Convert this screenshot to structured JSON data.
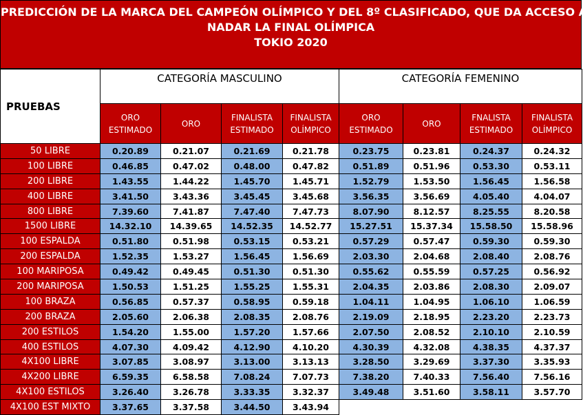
{
  "title": {
    "line1": "PREDICCIÓN DE LA MARCA DEL CAMPEÓN OLÍMPICO Y DEL 8º CLASIFICADO, QUE DA ACCESO A",
    "line2": "NADAR LA FINAL OLÍMPICA",
    "line3": "TOKIO 2020"
  },
  "header": {
    "pruebas": "PRUEBAS",
    "masculino": "CATEGORÍA MASCULINO",
    "femenino": "CATEGORÍA FEMENINO",
    "columns": [
      "ORO ESTIMADO",
      "ORO",
      "FINALISTA ESTIMADO",
      "FINALISTA OLÍMPICO",
      "ORO ESTIMADO",
      "ORO",
      "FNALISTA ESTIMADO",
      "FINALISTA OLÍMPICO"
    ]
  },
  "colors": {
    "header_red": "#c00000",
    "estimate_blue": "#8db4e2"
  },
  "rows": [
    {
      "event": "50 LIBRE",
      "m": [
        "0.20.89",
        "0.21.07",
        "0.21.69",
        "0.21.78"
      ],
      "f": [
        "0.23.75",
        "0.23.81",
        "0.24.37",
        "0.24.32"
      ]
    },
    {
      "event": "100 LIBRE",
      "m": [
        "0.46.85",
        "0.47.02",
        "0.48.00",
        "0.47.82"
      ],
      "f": [
        "0.51.89",
        "0.51.96",
        "0.53.30",
        "0.53.11"
      ]
    },
    {
      "event": "200 LIBRE",
      "m": [
        "1.43.55",
        "1.44.22",
        "1.45.70",
        "1.45.71"
      ],
      "f": [
        "1.52.79",
        "1.53.50",
        "1.56.45",
        "1.56.58"
      ]
    },
    {
      "event": "400 LIBRE",
      "m": [
        "3.41.50",
        "3.43.36",
        "3.45.45",
        "3.45.68"
      ],
      "f": [
        "3.56.35",
        "3.56.69",
        "4.05.40",
        "4.04.07"
      ]
    },
    {
      "event": "800 LIBRE",
      "m": [
        "7.39.60",
        "7.41.87",
        "7.47.40",
        "7.47.73"
      ],
      "f": [
        "8.07.90",
        "8.12.57",
        "8.25.55",
        "8.20.58"
      ]
    },
    {
      "event": "1500 LIBRE",
      "m": [
        "14.32.10",
        "14.39.65",
        "14.52.35",
        "14.52.77"
      ],
      "f": [
        "15.27.51",
        "15.37.34",
        "15.58.50",
        "15.58.96"
      ]
    },
    {
      "event": "100 ESPALDA",
      "m": [
        "0.51.80",
        "0.51.98",
        "0.53.15",
        "0.53.21"
      ],
      "f": [
        "0.57.29",
        "0.57.47",
        "0.59.30",
        "0.59.30"
      ]
    },
    {
      "event": "200 ESPALDA",
      "m": [
        "1.52.35",
        "1.53.27",
        "1.56.45",
        "1.56.69"
      ],
      "f": [
        "2.03.30",
        "2.04.68",
        "2.08.40",
        "2.08.76"
      ]
    },
    {
      "event": "100 MARIPOSA",
      "m": [
        "0.49.42",
        "0.49.45",
        "0.51.30",
        "0.51.30"
      ],
      "f": [
        "0.55.62",
        "0.55.59",
        "0.57.25",
        "0.56.92"
      ]
    },
    {
      "event": "200 MARIPOSA",
      "m": [
        "1.50.53",
        "1.51.25",
        "1.55.25",
        "1.55.31"
      ],
      "f": [
        "2.04.35",
        "2.03.86",
        "2.08.30",
        "2.09.07"
      ]
    },
    {
      "event": "100 BRAZA",
      "m": [
        "0.56.85",
        "0.57.37",
        "0.58.95",
        "0.59.18"
      ],
      "f": [
        "1.04.11",
        "1.04.95",
        "1.06.10",
        "1.06.59"
      ]
    },
    {
      "event": "200 BRAZA",
      "m": [
        "2.05.60",
        "2.06.38",
        "2.08.35",
        "2.08.76"
      ],
      "f": [
        "2.19.09",
        "2.18.95",
        "2.23.20",
        "2.23.73"
      ]
    },
    {
      "event": "200 ESTILOS",
      "m": [
        "1.54.20",
        "1.55.00",
        "1.57.20",
        "1.57.66"
      ],
      "f": [
        "2.07.50",
        "2.08.52",
        "2.10.10",
        "2.10.59"
      ]
    },
    {
      "event": "400 ESTILOS",
      "m": [
        "4.07.30",
        "4.09.42",
        "4.12.90",
        "4.10.20"
      ],
      "f": [
        "4.30.39",
        "4.32.08",
        "4.38.35",
        "4.37.37"
      ]
    },
    {
      "event": "4X100 LIBRE",
      "m": [
        "3.07.85",
        "3.08.97",
        "3.13.00",
        "3.13.13"
      ],
      "f": [
        "3.28.50",
        "3.29.69",
        "3.37.30",
        "3.35.93"
      ]
    },
    {
      "event": "4X200 LIBRE",
      "m": [
        "6.59.35",
        "6.58.58",
        "7.08.24",
        "7.07.73"
      ],
      "f": [
        "7.38.20",
        "7.40.33",
        "7.56.40",
        "7.56.16"
      ]
    },
    {
      "event": "4X100 ESTILOS",
      "m": [
        "3.26.40",
        "3.26.78",
        "3.33.35",
        "3.32.37"
      ],
      "f": [
        "3.49.48",
        "3.51.60",
        "3.58.11",
        "3.57.70"
      ]
    },
    {
      "event": "4X100 EST MIXTO",
      "m": [
        "3.37.65",
        "3.37.58",
        "3.44.50",
        "3.43.94"
      ],
      "f": []
    }
  ]
}
